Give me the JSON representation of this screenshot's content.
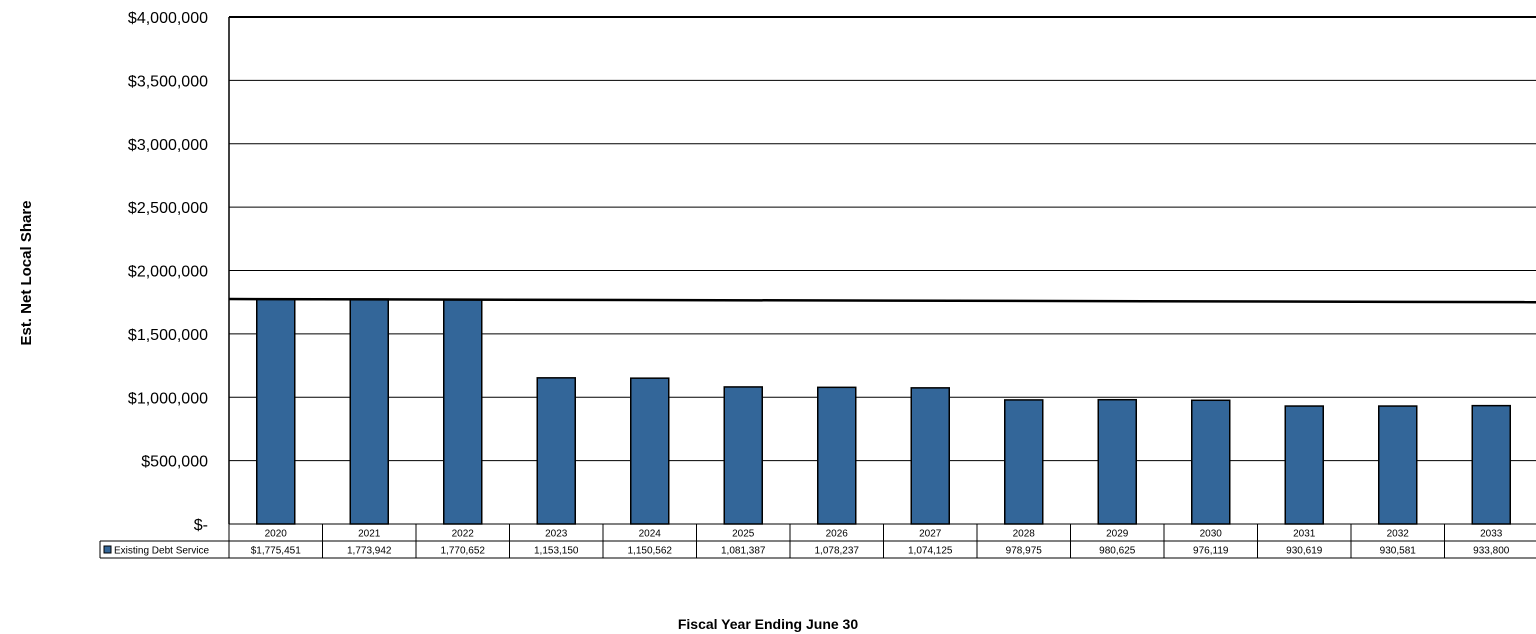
{
  "chart_data": {
    "type": "bar",
    "title": "",
    "ylabel": "Est. Net Local Share",
    "xlabel": "Fiscal Year Ending June 30",
    "ylim": [
      0,
      4000000
    ],
    "yticks": [
      0,
      500000,
      1000000,
      1500000,
      2000000,
      2500000,
      3000000,
      3500000,
      4000000
    ],
    "ytick_labels": [
      "$-",
      "$500,000",
      "$1,000,000",
      "$1,500,000",
      "$2,000,000",
      "$2,500,000",
      "$3,000,000",
      "$3,500,000",
      "$4,000,000"
    ],
    "grid": true,
    "categories": [
      "2020",
      "2021",
      "2022",
      "2023",
      "2024",
      "2025",
      "2026",
      "2027",
      "2028",
      "2029",
      "2030",
      "2031",
      "2032",
      "2033"
    ],
    "series": [
      {
        "name": "Existing Debt Service",
        "color": "#336699",
        "values": [
          1775451,
          1773942,
          1770652,
          1153150,
          1150562,
          1081387,
          1078237,
          1074125,
          978975,
          980625,
          976119,
          930619,
          930581,
          933800
        ],
        "value_labels": [
          "$1,775,451",
          "1,773,942",
          "1,770,652",
          "1,153,150",
          "1,150,562",
          "1,081,387",
          "1,078,237",
          "1,074,125",
          "978,975",
          "980,625",
          "976,119",
          "930,619",
          "930,581",
          "933,800"
        ]
      }
    ],
    "reference_line": {
      "start": 1775000,
      "end": 1750000
    },
    "legend": "data-table"
  }
}
